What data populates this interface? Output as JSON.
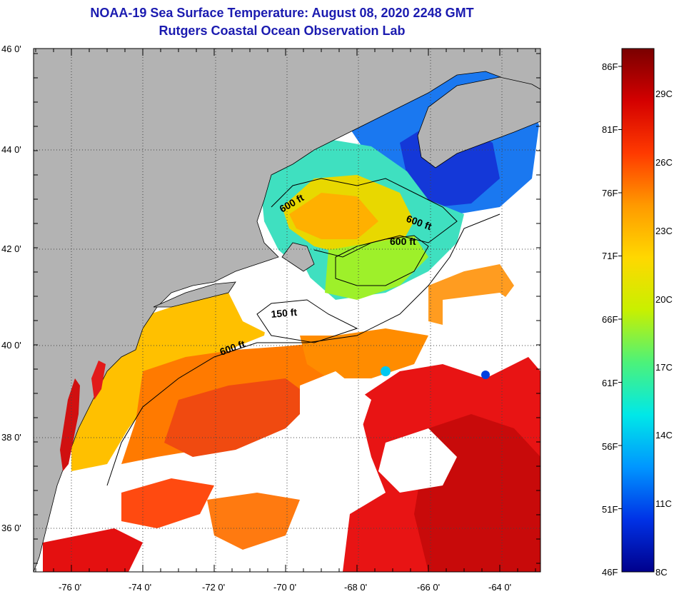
{
  "title": "NOAA-19 Sea Surface Temperature:  August 08, 2020 2248 GMT",
  "subtitle": "Rutgers Coastal Ocean Observation Lab",
  "lat_labels": [
    "46 0'",
    "44 0'",
    "42 0'",
    "40 0'",
    "38 0'",
    "36 0'"
  ],
  "lon_labels": [
    "-76 0'",
    "-74 0'",
    "-72 0'",
    "-70 0'",
    "-68 0'",
    "-66 0'",
    "-64 0'"
  ],
  "contour_labels": [
    "600 ft",
    "600 ft",
    "600 ft",
    "150 ft",
    "600 ft"
  ],
  "colorbar": {
    "fahrenheit_labels": [
      "86F",
      "81F",
      "76F",
      "71F",
      "66F",
      "61F",
      "56F",
      "51F",
      "46F"
    ],
    "celsius_labels": [
      "29C",
      "26C",
      "23C",
      "20C",
      "17C",
      "14C",
      "11C",
      "8C"
    ],
    "colors": [
      "#7a0000",
      "#d40000",
      "#ff3a00",
      "#ff9a00",
      "#ffd800",
      "#c8f000",
      "#4cf27a",
      "#00e8e8",
      "#0096ff",
      "#0032e6",
      "#00008c"
    ]
  },
  "colors": {
    "land": "#b3b3b3",
    "no_data": "#ffffff",
    "title": "#1b1bb0"
  }
}
